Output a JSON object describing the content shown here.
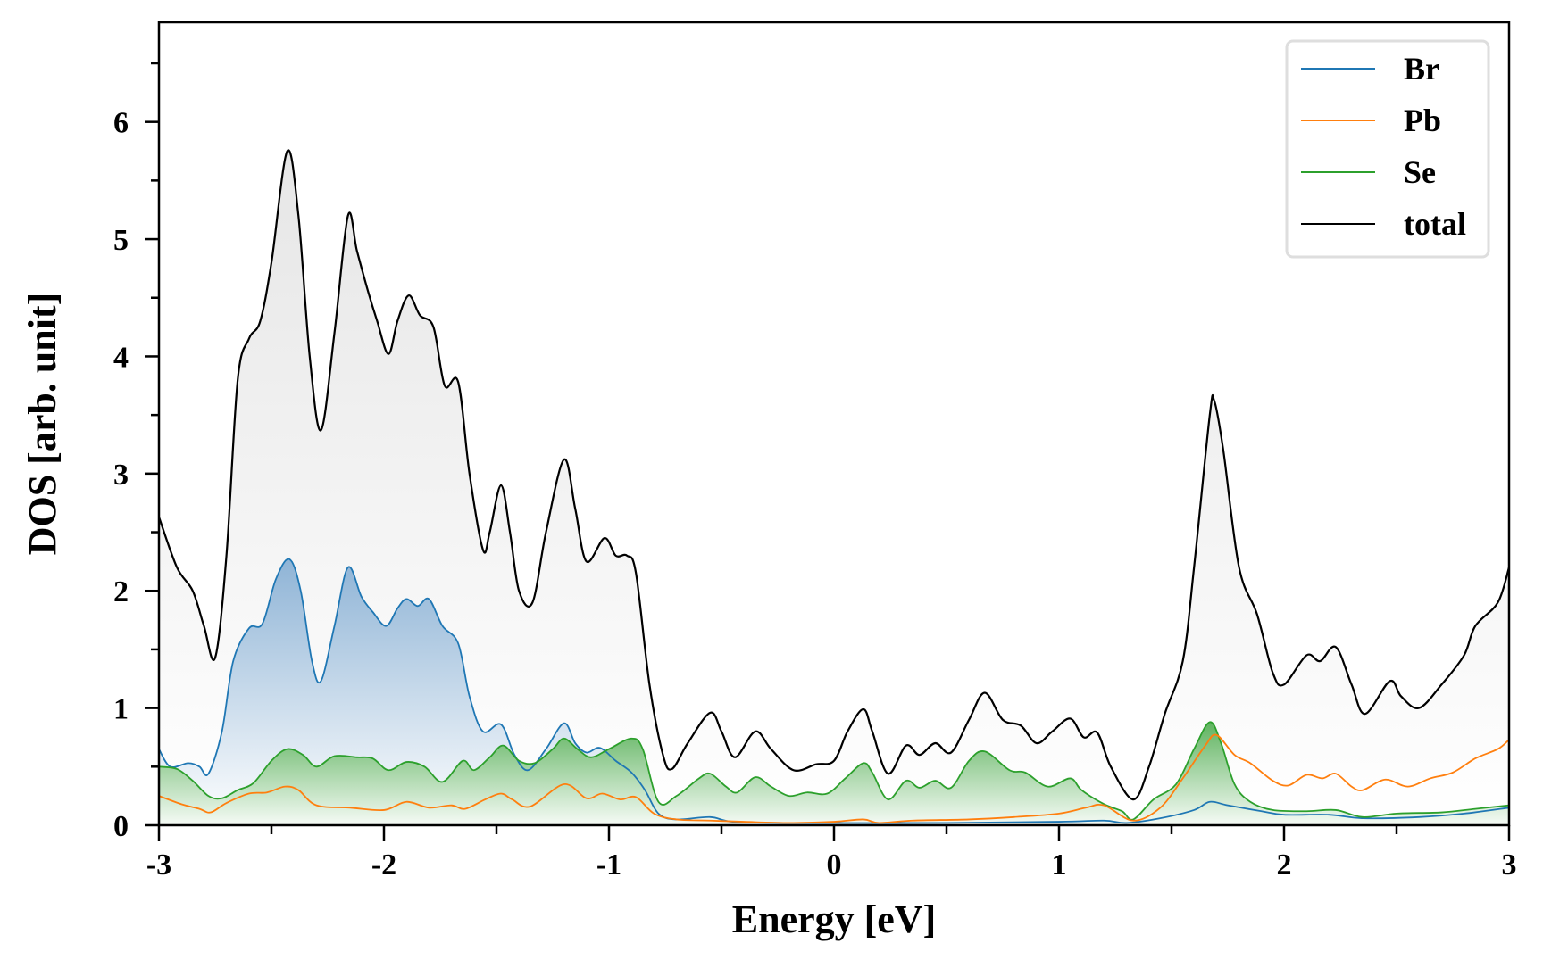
{
  "chart_data": {
    "type": "line",
    "title": "",
    "xlabel": "Energy [eV]",
    "ylabel": "DOS [arb. unit]",
    "xlim": [
      -3,
      3
    ],
    "ylim": [
      0,
      6.85
    ],
    "xticks": [
      "-3",
      "-2",
      "-1",
      "0",
      "1",
      "2",
      "3"
    ],
    "yticks": [
      "0",
      "1",
      "2",
      "3",
      "4",
      "5",
      "6"
    ],
    "grid": false,
    "legend_position": "top-right",
    "series": [
      {
        "name": "Br",
        "color": "#1f77b4",
        "filled": true,
        "x": [
          -3,
          -2.95,
          -2.87,
          -2.82,
          -2.78,
          -2.72,
          -2.67,
          -2.6,
          -2.54,
          -2.48,
          -2.42,
          -2.37,
          -2.32,
          -2.28,
          -2.22,
          -2.16,
          -2.1,
          -2.05,
          -1.99,
          -1.94,
          -1.9,
          -1.85,
          -1.8,
          -1.74,
          -1.67,
          -1.62,
          -1.56,
          -1.48,
          -1.42,
          -1.36,
          -1.28,
          -1.2,
          -1.15,
          -1.1,
          -1.04,
          -0.97,
          -0.9,
          -0.84,
          -0.78,
          -0.7,
          -0.55,
          -0.45,
          -0.2,
          0.5,
          1.0,
          1.2,
          1.3,
          1.45,
          1.6,
          1.67,
          1.75,
          1.9,
          2.0,
          2.2,
          2.35,
          2.6,
          2.8,
          3.0
        ],
        "y": [
          0.65,
          0.5,
          0.53,
          0.5,
          0.44,
          0.8,
          1.4,
          1.68,
          1.72,
          2.1,
          2.27,
          2.0,
          1.4,
          1.23,
          1.7,
          2.2,
          1.95,
          1.82,
          1.7,
          1.85,
          1.93,
          1.87,
          1.93,
          1.7,
          1.55,
          1.1,
          0.8,
          0.86,
          0.6,
          0.47,
          0.65,
          0.87,
          0.7,
          0.62,
          0.66,
          0.55,
          0.45,
          0.3,
          0.1,
          0.05,
          0.07,
          0.03,
          0.02,
          0.02,
          0.03,
          0.04,
          0.02,
          0.06,
          0.13,
          0.2,
          0.17,
          0.12,
          0.09,
          0.09,
          0.06,
          0.07,
          0.1,
          0.15
        ]
      },
      {
        "name": "Pb",
        "color": "#ff7f0e",
        "filled": false,
        "x": [
          -3,
          -2.9,
          -2.82,
          -2.77,
          -2.7,
          -2.6,
          -2.52,
          -2.44,
          -2.38,
          -2.3,
          -2.15,
          -2.0,
          -1.9,
          -1.8,
          -1.7,
          -1.64,
          -1.55,
          -1.48,
          -1.43,
          -1.35,
          -1.2,
          -1.1,
          -1.03,
          -0.95,
          -0.88,
          -0.8,
          -0.7,
          -0.55,
          -0.4,
          -0.2,
          0.0,
          0.13,
          0.2,
          0.35,
          0.6,
          0.8,
          1.0,
          1.12,
          1.2,
          1.33,
          1.45,
          1.55,
          1.65,
          1.7,
          1.78,
          1.85,
          1.95,
          2.02,
          2.1,
          2.17,
          2.23,
          2.3,
          2.35,
          2.45,
          2.55,
          2.65,
          2.75,
          2.85,
          2.95,
          3.0
        ],
        "y": [
          0.25,
          0.18,
          0.14,
          0.11,
          0.19,
          0.27,
          0.28,
          0.33,
          0.3,
          0.17,
          0.15,
          0.13,
          0.2,
          0.15,
          0.17,
          0.14,
          0.22,
          0.27,
          0.22,
          0.16,
          0.35,
          0.23,
          0.27,
          0.22,
          0.24,
          0.1,
          0.05,
          0.04,
          0.03,
          0.02,
          0.03,
          0.05,
          0.02,
          0.04,
          0.05,
          0.07,
          0.1,
          0.15,
          0.17,
          0.04,
          0.15,
          0.4,
          0.68,
          0.77,
          0.6,
          0.53,
          0.38,
          0.34,
          0.43,
          0.4,
          0.44,
          0.33,
          0.3,
          0.39,
          0.33,
          0.4,
          0.45,
          0.57,
          0.65,
          0.73
        ]
      },
      {
        "name": "Se",
        "color": "#2ca02c",
        "filled": true,
        "x": [
          -3,
          -2.92,
          -2.85,
          -2.78,
          -2.72,
          -2.65,
          -2.58,
          -2.5,
          -2.43,
          -2.36,
          -2.3,
          -2.22,
          -2.12,
          -2.05,
          -1.98,
          -1.9,
          -1.82,
          -1.74,
          -1.65,
          -1.6,
          -1.53,
          -1.47,
          -1.4,
          -1.33,
          -1.25,
          -1.2,
          -1.14,
          -1.08,
          -1.0,
          -0.9,
          -0.85,
          -0.78,
          -0.7,
          -0.6,
          -0.55,
          -0.48,
          -0.43,
          -0.35,
          -0.28,
          -0.2,
          -0.12,
          -0.03,
          0.05,
          0.13,
          0.17,
          0.24,
          0.32,
          0.38,
          0.45,
          0.52,
          0.6,
          0.67,
          0.78,
          0.85,
          0.95,
          1.05,
          1.1,
          1.2,
          1.28,
          1.33,
          1.42,
          1.52,
          1.6,
          1.67,
          1.72,
          1.78,
          1.85,
          1.95,
          2.1,
          2.23,
          2.35,
          2.5,
          2.7,
          2.85,
          3.0
        ],
        "y": [
          0.5,
          0.48,
          0.38,
          0.25,
          0.23,
          0.3,
          0.36,
          0.55,
          0.65,
          0.6,
          0.5,
          0.59,
          0.58,
          0.57,
          0.47,
          0.54,
          0.5,
          0.37,
          0.55,
          0.47,
          0.58,
          0.68,
          0.55,
          0.53,
          0.65,
          0.74,
          0.65,
          0.58,
          0.65,
          0.74,
          0.65,
          0.2,
          0.25,
          0.4,
          0.44,
          0.33,
          0.28,
          0.41,
          0.33,
          0.25,
          0.28,
          0.27,
          0.4,
          0.53,
          0.45,
          0.22,
          0.38,
          0.32,
          0.38,
          0.32,
          0.55,
          0.63,
          0.47,
          0.45,
          0.33,
          0.4,
          0.3,
          0.18,
          0.12,
          0.05,
          0.22,
          0.35,
          0.65,
          0.88,
          0.7,
          0.35,
          0.2,
          0.13,
          0.12,
          0.13,
          0.07,
          0.1,
          0.11,
          0.14,
          0.17
        ]
      },
      {
        "name": "total",
        "color": "#000000",
        "filled": true,
        "x": [
          -3,
          -2.92,
          -2.85,
          -2.8,
          -2.75,
          -2.7,
          -2.65,
          -2.6,
          -2.55,
          -2.5,
          -2.43,
          -2.38,
          -2.33,
          -2.28,
          -2.22,
          -2.16,
          -2.12,
          -2.07,
          -2.03,
          -1.98,
          -1.94,
          -1.89,
          -1.84,
          -1.78,
          -1.73,
          -1.67,
          -1.62,
          -1.56,
          -1.53,
          -1.48,
          -1.44,
          -1.4,
          -1.34,
          -1.28,
          -1.2,
          -1.15,
          -1.1,
          -1.02,
          -0.97,
          -0.92,
          -0.88,
          -0.82,
          -0.76,
          -0.72,
          -0.65,
          -0.55,
          -0.5,
          -0.44,
          -0.35,
          -0.28,
          -0.18,
          -0.08,
          0.0,
          0.06,
          0.13,
          0.17,
          0.24,
          0.32,
          0.38,
          0.45,
          0.52,
          0.6,
          0.67,
          0.75,
          0.83,
          0.9,
          0.97,
          1.05,
          1.11,
          1.17,
          1.23,
          1.33,
          1.4,
          1.47,
          1.55,
          1.6,
          1.67,
          1.69,
          1.73,
          1.8,
          1.88,
          1.95,
          2.0,
          2.1,
          2.16,
          2.23,
          2.3,
          2.36,
          2.47,
          2.52,
          2.6,
          2.7,
          2.8,
          2.85,
          2.95,
          3.0
        ],
        "y": [
          2.63,
          2.2,
          2.0,
          1.7,
          1.43,
          2.3,
          3.8,
          4.15,
          4.3,
          4.8,
          5.75,
          5.2,
          4.0,
          3.37,
          4.2,
          5.2,
          4.9,
          4.55,
          4.3,
          4.02,
          4.3,
          4.52,
          4.35,
          4.25,
          3.75,
          3.78,
          3.0,
          2.35,
          2.5,
          2.9,
          2.5,
          2.0,
          1.9,
          2.5,
          3.12,
          2.7,
          2.25,
          2.45,
          2.3,
          2.3,
          2.15,
          1.2,
          0.6,
          0.48,
          0.7,
          0.96,
          0.8,
          0.58,
          0.8,
          0.65,
          0.47,
          0.52,
          0.55,
          0.8,
          0.99,
          0.8,
          0.44,
          0.68,
          0.6,
          0.7,
          0.62,
          0.9,
          1.13,
          0.9,
          0.85,
          0.7,
          0.8,
          0.91,
          0.75,
          0.79,
          0.5,
          0.22,
          0.5,
          0.95,
          1.4,
          2.2,
          3.5,
          3.62,
          3.2,
          2.2,
          1.8,
          1.3,
          1.2,
          1.45,
          1.4,
          1.52,
          1.2,
          0.95,
          1.23,
          1.1,
          1.0,
          1.2,
          1.45,
          1.7,
          1.9,
          2.2
        ]
      }
    ]
  }
}
